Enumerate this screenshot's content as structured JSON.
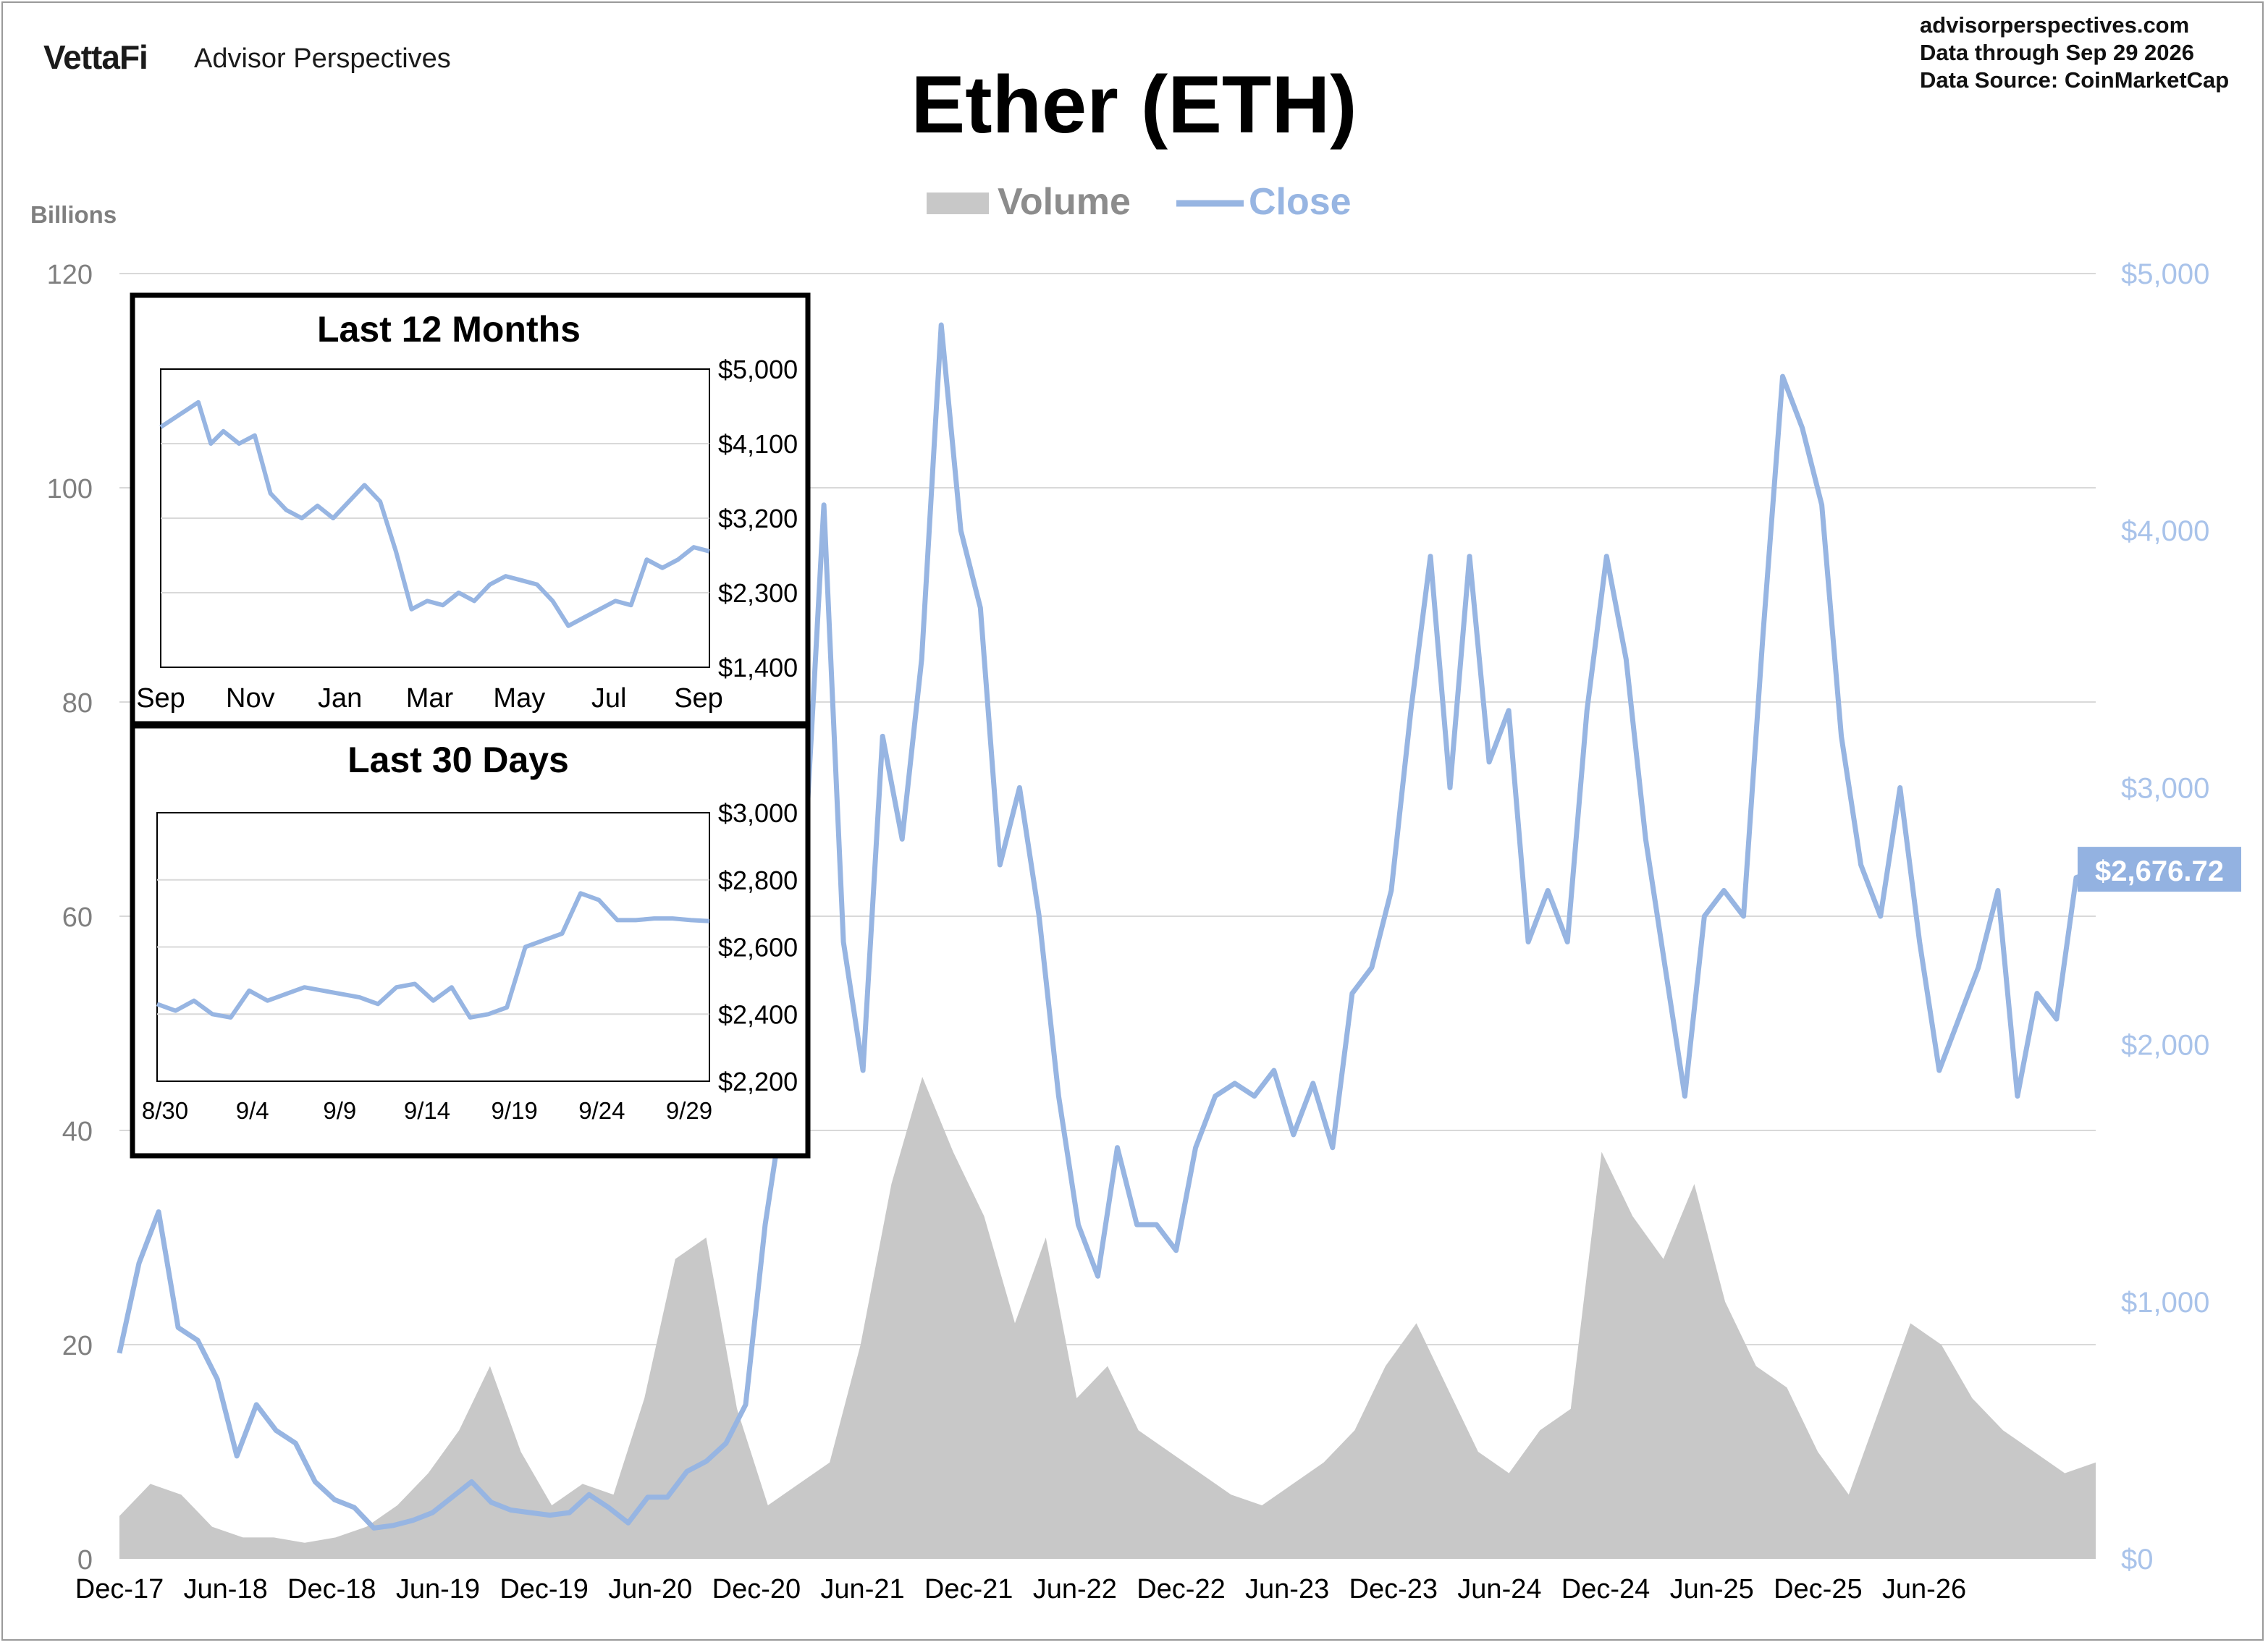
{
  "header": {
    "brand": "VettaFi",
    "brand_sub": "Advisor Perspectives",
    "website": "advisorperspectives.com",
    "data_through": "Data through  Sep 29 2026",
    "data_source": "Data Source:  CoinMarketCap"
  },
  "colors": {
    "volume": "#c8c8c8",
    "close": "#97b5e2",
    "grid": "#d9d9d9",
    "axis_text": "#7f7f7f",
    "right_axis_text": "#a9c3ea",
    "label_box": "#93b2e1"
  },
  "chart_data": [
    {
      "type": "area",
      "title": "Ether (ETH)",
      "left_axis_title": "Billions",
      "legend": [
        {
          "name": "Volume",
          "kind": "area"
        },
        {
          "name": "Close",
          "kind": "line"
        }
      ],
      "legend_position": "top-center",
      "grid": true,
      "x_tick_labels": [
        "Dec-17",
        "Jun-18",
        "Dec-18",
        "Jun-19",
        "Dec-19",
        "Jun-20",
        "Dec-20",
        "Jun-21",
        "Dec-21",
        "Jun-22",
        "Dec-22",
        "Jun-23",
        "Dec-23",
        "Jun-24",
        "Dec-24",
        "Jun-25",
        "Dec-25",
        "Jun-26"
      ],
      "y_left": {
        "ticks": [
          0,
          20,
          40,
          60,
          80,
          100,
          120
        ],
        "tick_labels": [
          "0",
          "20",
          "40",
          "60",
          "80",
          "100",
          "120"
        ],
        "ylim": [
          0,
          120
        ]
      },
      "y_right": {
        "ticks": [
          0,
          1000,
          2000,
          3000,
          4000,
          5000
        ],
        "tick_labels": [
          "$0",
          "$1,000",
          "$2,000",
          "$3,000",
          "$4,000",
          "$5,000"
        ],
        "ylim": [
          0,
          5000
        ]
      },
      "last_close_label": "$2,676.72",
      "series": [
        {
          "name": "Volume",
          "axis": "left",
          "points": [
            [
              0,
              4
            ],
            [
              2,
              7
            ],
            [
              4,
              6
            ],
            [
              6,
              3
            ],
            [
              8,
              2
            ],
            [
              10,
              2
            ],
            [
              12,
              1.5
            ],
            [
              14,
              2
            ],
            [
              16,
              3
            ],
            [
              18,
              5
            ],
            [
              20,
              8
            ],
            [
              22,
              12
            ],
            [
              24,
              18
            ],
            [
              26,
              10
            ],
            [
              28,
              5
            ],
            [
              30,
              7
            ],
            [
              32,
              6
            ],
            [
              34,
              15
            ],
            [
              36,
              28
            ],
            [
              38,
              30
            ],
            [
              40,
              14
            ],
            [
              42,
              5
            ],
            [
              44,
              7
            ],
            [
              46,
              9
            ],
            [
              48,
              20
            ],
            [
              50,
              35
            ],
            [
              52,
              45
            ],
            [
              54,
              38
            ],
            [
              56,
              32
            ],
            [
              58,
              22
            ],
            [
              60,
              30
            ],
            [
              62,
              15
            ],
            [
              64,
              18
            ],
            [
              66,
              12
            ],
            [
              68,
              10
            ],
            [
              70,
              8
            ],
            [
              72,
              6
            ],
            [
              74,
              5
            ],
            [
              76,
              7
            ],
            [
              78,
              9
            ],
            [
              80,
              12
            ],
            [
              82,
              18
            ],
            [
              84,
              22
            ],
            [
              86,
              16
            ],
            [
              88,
              10
            ],
            [
              90,
              8
            ],
            [
              92,
              12
            ],
            [
              94,
              14
            ],
            [
              96,
              38
            ],
            [
              98,
              32
            ],
            [
              100,
              28
            ],
            [
              102,
              35
            ],
            [
              104,
              24
            ],
            [
              106,
              18
            ],
            [
              108,
              16
            ],
            [
              110,
              10
            ],
            [
              112,
              6
            ],
            [
              114,
              14
            ],
            [
              116,
              22
            ],
            [
              118,
              20
            ],
            [
              120,
              15
            ],
            [
              122,
              12
            ],
            [
              124,
              10
            ],
            [
              126,
              8
            ],
            [
              128,
              9
            ]
          ],
          "unit": "billions"
        },
        {
          "name": "Close",
          "axis": "right",
          "points": [
            [
              0,
              800
            ],
            [
              1,
              1150
            ],
            [
              2,
              1350
            ],
            [
              3,
              900
            ],
            [
              4,
              850
            ],
            [
              5,
              700
            ],
            [
              6,
              400
            ],
            [
              7,
              600
            ],
            [
              8,
              500
            ],
            [
              9,
              450
            ],
            [
              10,
              300
            ],
            [
              11,
              230
            ],
            [
              12,
              200
            ],
            [
              13,
              120
            ],
            [
              14,
              130
            ],
            [
              15,
              150
            ],
            [
              16,
              180
            ],
            [
              17,
              240
            ],
            [
              18,
              300
            ],
            [
              19,
              220
            ],
            [
              20,
              190
            ],
            [
              21,
              180
            ],
            [
              22,
              170
            ],
            [
              23,
              180
            ],
            [
              24,
              250
            ],
            [
              25,
              200
            ],
            [
              26,
              140
            ],
            [
              27,
              240
            ],
            [
              28,
              240
            ],
            [
              29,
              340
            ],
            [
              30,
              380
            ],
            [
              31,
              450
            ],
            [
              32,
              600
            ],
            [
              33,
              1300
            ],
            [
              34,
              1800
            ],
            [
              35,
              2700
            ],
            [
              36,
              4100
            ],
            [
              37,
              2400
            ],
            [
              38,
              1900
            ],
            [
              39,
              3200
            ],
            [
              40,
              2800
            ],
            [
              41,
              3500
            ],
            [
              42,
              4800
            ],
            [
              43,
              4000
            ],
            [
              44,
              3700
            ],
            [
              45,
              2700
            ],
            [
              46,
              3000
            ],
            [
              47,
              2500
            ],
            [
              48,
              1800
            ],
            [
              49,
              1300
            ],
            [
              50,
              1100
            ],
            [
              51,
              1600
            ],
            [
              52,
              1300
            ],
            [
              53,
              1300
            ],
            [
              54,
              1200
            ],
            [
              55,
              1600
            ],
            [
              56,
              1800
            ],
            [
              57,
              1850
            ],
            [
              58,
              1800
            ],
            [
              59,
              1900
            ],
            [
              60,
              1650
            ],
            [
              61,
              1850
            ],
            [
              62,
              1600
            ],
            [
              63,
              2200
            ],
            [
              64,
              2300
            ],
            [
              65,
              2600
            ],
            [
              66,
              3300
            ],
            [
              67,
              3900
            ],
            [
              68,
              3000
            ],
            [
              69,
              3900
            ],
            [
              70,
              3100
            ],
            [
              71,
              3300
            ],
            [
              72,
              2400
            ],
            [
              73,
              2600
            ],
            [
              74,
              2400
            ],
            [
              75,
              3300
            ],
            [
              76,
              3900
            ],
            [
              77,
              3500
            ],
            [
              78,
              2800
            ],
            [
              79,
              2300
            ],
            [
              80,
              1800
            ],
            [
              81,
              2500
            ],
            [
              82,
              2600
            ],
            [
              83,
              2500
            ],
            [
              84,
              3600
            ],
            [
              85,
              4600
            ],
            [
              86,
              4400
            ],
            [
              87,
              4100
            ],
            [
              88,
              3200
            ],
            [
              89,
              2700
            ],
            [
              90,
              2500
            ],
            [
              91,
              3000
            ],
            [
              92,
              2400
            ],
            [
              93,
              1900
            ],
            [
              94,
              2100
            ],
            [
              95,
              2300
            ],
            [
              96,
              2600
            ],
            [
              97,
              1800
            ],
            [
              98,
              2200
            ],
            [
              99,
              2100
            ],
            [
              100,
              2650
            ],
            [
              101,
              2677
            ]
          ],
          "unit": "USD"
        }
      ]
    },
    {
      "type": "line",
      "title": "Last 12 Months",
      "x_tick_labels": [
        "Sep",
        "Nov",
        "Jan",
        "Mar",
        "May",
        "Jul",
        "Sep"
      ],
      "y_tick_labels": [
        "$5,000",
        "$4,100",
        "$3,200",
        "$2,300",
        "$1,400"
      ],
      "ylim": [
        1400,
        5000
      ],
      "grid": true,
      "series": [
        {
          "name": "",
          "points": [
            [
              0,
              4300
            ],
            [
              0.8,
              4500
            ],
            [
              1.2,
              4600
            ],
            [
              1.6,
              4100
            ],
            [
              2,
              4250
            ],
            [
              2.5,
              4100
            ],
            [
              3,
              4200
            ],
            [
              3.5,
              3500
            ],
            [
              4,
              3300
            ],
            [
              4.5,
              3200
            ],
            [
              5,
              3350
            ],
            [
              5.5,
              3200
            ],
            [
              6,
              3400
            ],
            [
              6.5,
              3600
            ],
            [
              7,
              3400
            ],
            [
              7.5,
              2800
            ],
            [
              8,
              2100
            ],
            [
              8.5,
              2200
            ],
            [
              9,
              2150
            ],
            [
              9.5,
              2300
            ],
            [
              10,
              2200
            ],
            [
              10.5,
              2400
            ],
            [
              11,
              2500
            ],
            [
              11.5,
              2450
            ],
            [
              12,
              2400
            ],
            [
              12.5,
              2200
            ],
            [
              13,
              1900
            ],
            [
              13.5,
              2000
            ],
            [
              14,
              2100
            ],
            [
              14.5,
              2200
            ],
            [
              15,
              2150
            ],
            [
              15.5,
              2700
            ],
            [
              16,
              2600
            ],
            [
              16.5,
              2700
            ],
            [
              17,
              2850
            ],
            [
              17.5,
              2800
            ]
          ]
        }
      ]
    },
    {
      "type": "line",
      "title": "Last 30 Days",
      "x_tick_labels": [
        "8/30",
        "9/4",
        "9/9",
        "9/14",
        "9/19",
        "9/24",
        "9/29"
      ],
      "y_tick_labels": [
        "$3,000",
        "$2,800",
        "$2,600",
        "$2,400",
        "$2,200"
      ],
      "ylim": [
        2200,
        3000
      ],
      "grid": true,
      "series": [
        {
          "name": "",
          "points": [
            [
              0,
              2430
            ],
            [
              1,
              2410
            ],
            [
              2,
              2440
            ],
            [
              3,
              2400
            ],
            [
              4,
              2390
            ],
            [
              5,
              2470
            ],
            [
              6,
              2440
            ],
            [
              7,
              2460
            ],
            [
              8,
              2480
            ],
            [
              9,
              2470
            ],
            [
              10,
              2460
            ],
            [
              11,
              2450
            ],
            [
              12,
              2430
            ],
            [
              13,
              2480
            ],
            [
              14,
              2490
            ],
            [
              15,
              2440
            ],
            [
              16,
              2480
            ],
            [
              17,
              2390
            ],
            [
              18,
              2400
            ],
            [
              19,
              2420
            ],
            [
              20,
              2600
            ],
            [
              21,
              2620
            ],
            [
              22,
              2640
            ],
            [
              23,
              2760
            ],
            [
              24,
              2740
            ],
            [
              25,
              2680
            ],
            [
              26,
              2680
            ],
            [
              27,
              2685
            ],
            [
              28,
              2685
            ],
            [
              29,
              2680
            ],
            [
              30,
              2677
            ]
          ]
        }
      ]
    }
  ]
}
